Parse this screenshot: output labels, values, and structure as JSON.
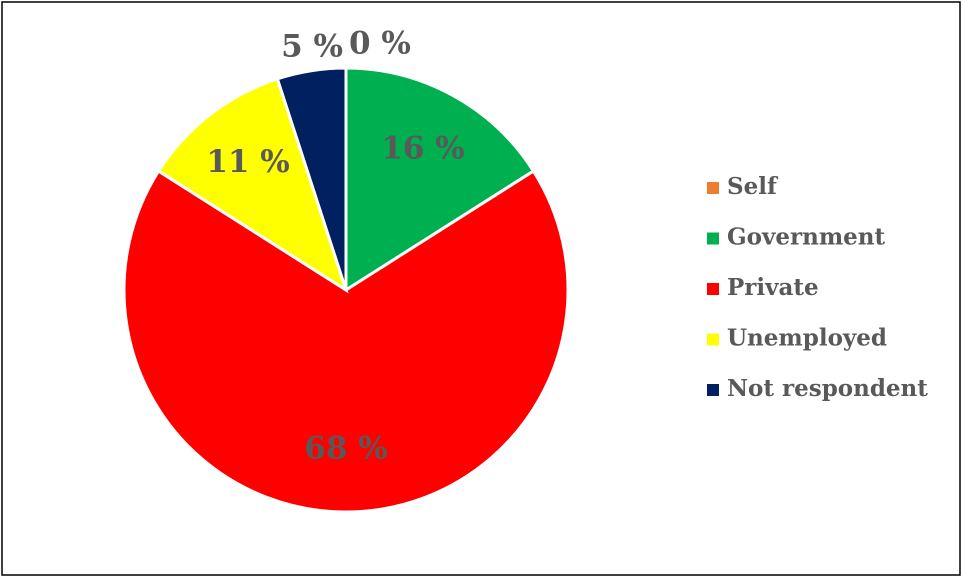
{
  "chart_data": {
    "type": "pie",
    "categories": [
      "Self",
      "Government",
      "Private",
      "Unemployed",
      "Not respondent"
    ],
    "values": [
      0,
      16,
      68,
      11,
      5
    ],
    "value_labels": [
      "0 %",
      "16 %",
      "68 %",
      "11 %",
      "5 %"
    ],
    "colors": [
      "#ed7d31",
      "#00b050",
      "#ff0000",
      "#ffff00",
      "#002060"
    ],
    "legend": "right"
  }
}
